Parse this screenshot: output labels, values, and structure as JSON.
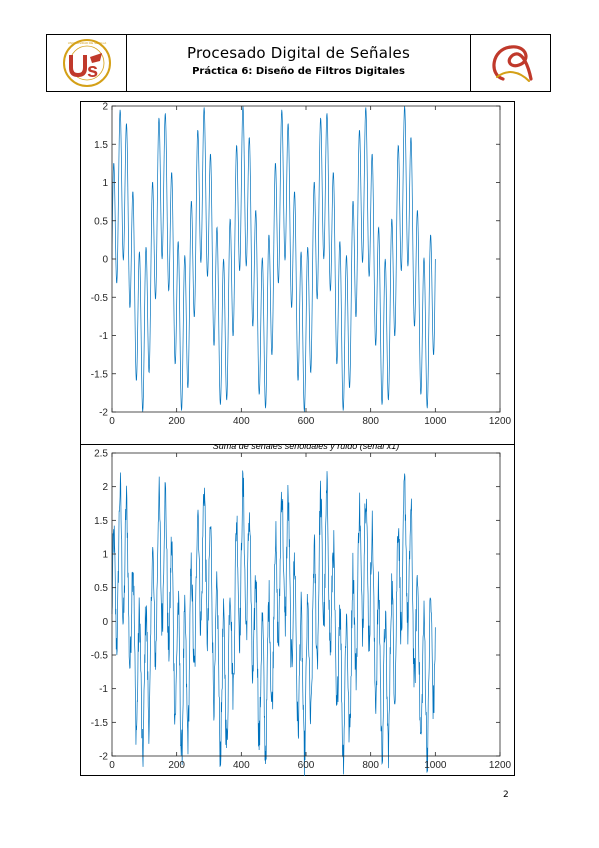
{
  "header": {
    "title": "Procesado Digital de Señales",
    "subtitle": "Práctica 6: Diseño de Filtros Digitales",
    "logo_left_text": "UNIVERSIDAD DE SEVILLA",
    "logo_left_icon": "university-seal-icon",
    "logo_right_icon": "signature-logo-icon"
  },
  "colors": {
    "series": "#0072bd",
    "axes": "#262626",
    "logo_red": "#c0392b",
    "logo_gold": "#d4a017"
  },
  "page_number": "2",
  "chart_data": [
    {
      "type": "line",
      "title": "",
      "xlabel": "",
      "ylabel": "",
      "xlim": [
        0,
        1200
      ],
      "ylim": [
        -2,
        2
      ],
      "xticks": [
        "0",
        "200",
        "400",
        "600",
        "800",
        "1000",
        "1200"
      ],
      "yticks": [
        "-2",
        "-1.5",
        "-1",
        "-0.5",
        "0",
        "0.5",
        "1",
        "1.5",
        "2"
      ],
      "grid": false,
      "series": [
        {
          "n_samples": 1001,
          "x_start": 0,
          "x_end": 1000,
          "components": [
            {
              "amplitude": 1,
              "period": 125
            },
            {
              "amplitude": 1,
              "period": 20
            }
          ]
        }
      ]
    },
    {
      "type": "line",
      "title": "Suma de señales senoidales y ruido (señal x1)",
      "xlabel": "",
      "ylabel": "",
      "xlim": [
        0,
        1200
      ],
      "ylim": [
        -2,
        2.5
      ],
      "xticks": [
        "0",
        "200",
        "400",
        "600",
        "800",
        "1000",
        "1200"
      ],
      "yticks": [
        "-2",
        "-1.5",
        "-1",
        "-0.5",
        "0",
        "0.5",
        "1",
        "1.5",
        "2",
        "2.5"
      ],
      "grid": false,
      "series": [
        {
          "n_samples": 1001,
          "x_start": 0,
          "x_end": 1000,
          "components": [
            {
              "amplitude": 1,
              "period": 125
            },
            {
              "amplitude": 1,
              "period": 20
            }
          ],
          "noise_amplitude": 0.35
        }
      ]
    }
  ]
}
